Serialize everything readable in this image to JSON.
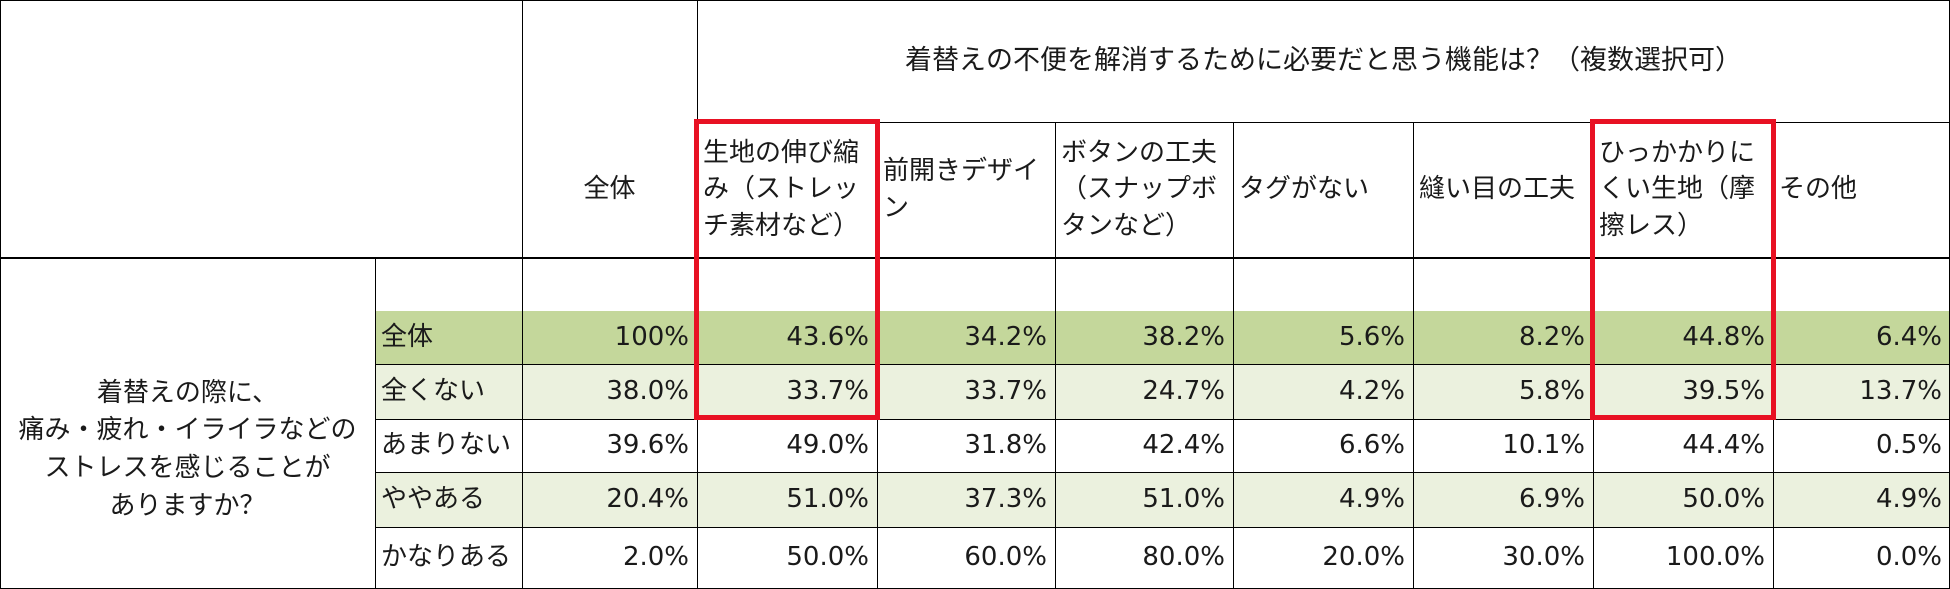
{
  "table": {
    "question_header": "着替えの不便を解消するために必要だと思う機能は？（複数選択可）",
    "row_question": "着替えの際に、\n痛み・疲れ・イライラなどの\nストレスを感じることが\nありますか？",
    "total_header": "全体",
    "columns": [
      "生地の伸び縮み（ストレッチ素材など）",
      "前開きデザイン",
      "ボタンの工夫（スナップボタンなど）",
      "タグがない",
      "縫い目の工夫",
      "ひっかかりにくい生地（摩擦レス）",
      "その他"
    ],
    "rows": [
      {
        "label": "全体",
        "total": "100%",
        "values": [
          "43.6%",
          "34.2%",
          "38.2%",
          "5.6%",
          "8.2%",
          "44.8%",
          "6.4%"
        ]
      },
      {
        "label": "全くない",
        "total": "38.0%",
        "values": [
          "33.7%",
          "33.7%",
          "24.7%",
          "4.2%",
          "5.8%",
          "39.5%",
          "13.7%"
        ]
      },
      {
        "label": "あまりない",
        "total": "39.6%",
        "values": [
          "49.0%",
          "31.8%",
          "42.4%",
          "6.6%",
          "10.1%",
          "44.4%",
          "0.5%"
        ]
      },
      {
        "label": "ややある",
        "total": "20.4%",
        "values": [
          "51.0%",
          "37.3%",
          "51.0%",
          "4.9%",
          "6.9%",
          "50.0%",
          "4.9%"
        ]
      },
      {
        "label": "かなりある",
        "total": "2.0%",
        "values": [
          "50.0%",
          "60.0%",
          "80.0%",
          "20.0%",
          "30.0%",
          "100.0%",
          "0.0%"
        ]
      }
    ],
    "colors": {
      "overall_row_fill": "#c4d79b",
      "band_fill": "#ebf1de",
      "highlight_border": "#e81123",
      "grid_line": "#000000"
    },
    "highlighted_columns": [
      "生地の伸び縮み（ストレッチ素材など）",
      "ひっかかりにくい生地（摩擦レス）"
    ]
  }
}
